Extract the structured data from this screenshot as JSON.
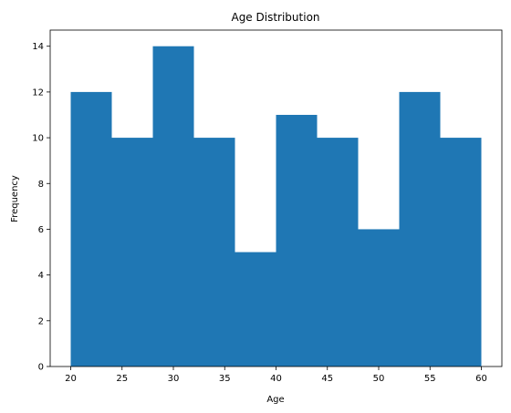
{
  "chart_data": {
    "type": "bar",
    "subtype": "histogram",
    "title": "Age Distribution",
    "xlabel": "Age",
    "ylabel": "Frequency",
    "bin_edges": [
      20,
      24,
      28,
      32,
      36,
      40,
      44,
      48,
      52,
      56,
      60
    ],
    "values": [
      12,
      10,
      14,
      10,
      5,
      11,
      10,
      6,
      12,
      10
    ],
    "xlim": [
      20,
      60
    ],
    "ylim": [
      0,
      14
    ],
    "x_ticks": [
      20,
      25,
      30,
      35,
      40,
      45,
      50,
      55,
      60
    ],
    "y_ticks": [
      0,
      2,
      4,
      6,
      8,
      10,
      12,
      14
    ],
    "grid": false,
    "bar_color": "#1f77b4"
  }
}
